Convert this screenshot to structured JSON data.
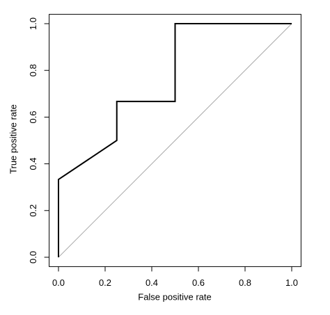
{
  "chart_data": {
    "type": "line",
    "x_label": "False positive rate",
    "y_label": "True positive rate",
    "series": [
      {
        "color": "#000000",
        "x": [
          0,
          0,
          0.25,
          0.25,
          0.5,
          0.5,
          1
        ],
        "values": [
          0,
          0.333,
          0.5,
          0.667,
          0.667,
          1,
          1
        ]
      },
      {
        "color": "#aaaaaa",
        "x": [
          0,
          1
        ],
        "values": [
          0,
          1
        ]
      }
    ],
    "xlim": [
      -0.04,
      1.04
    ],
    "ylim": [
      -0.04,
      1.04
    ],
    "xticks": [
      {
        "value": 0,
        "label": "0.0"
      },
      0.2,
      0.4,
      0.6,
      0.8,
      {
        "value": 1,
        "label": "1.0"
      }
    ],
    "yticks": [
      {
        "value": 0,
        "label": "0.0"
      },
      0.2,
      0.4,
      0.6,
      0.8,
      {
        "value": 1,
        "label": "1.0"
      }
    ],
    "grid": false
  }
}
